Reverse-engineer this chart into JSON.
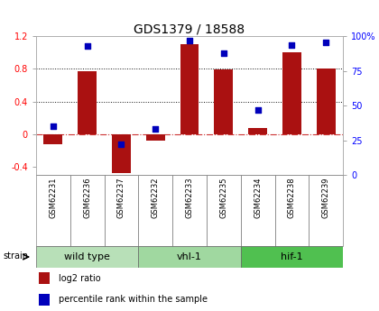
{
  "title": "GDS1379 / 18588",
  "samples": [
    "GSM62231",
    "GSM62236",
    "GSM62237",
    "GSM62232",
    "GSM62233",
    "GSM62235",
    "GSM62234",
    "GSM62238",
    "GSM62239"
  ],
  "log2_ratio": [
    -0.13,
    0.77,
    -0.48,
    -0.08,
    1.1,
    0.79,
    0.08,
    1.0,
    0.81
  ],
  "percentile": [
    35,
    93,
    22,
    33,
    97,
    88,
    47,
    94,
    96
  ],
  "groups": [
    {
      "label": "wild type",
      "start": 0,
      "end": 3,
      "color": "#b8e0b8"
    },
    {
      "label": "vhl-1",
      "start": 3,
      "end": 6,
      "color": "#a0d8a0"
    },
    {
      "label": "hif-1",
      "start": 6,
      "end": 9,
      "color": "#50c050"
    }
  ],
  "ylim_left": [
    -0.5,
    1.2
  ],
  "ylim_right": [
    0,
    100
  ],
  "bar_color": "#aa1111",
  "dot_color": "#0000bb",
  "zero_line_color": "#cc3333",
  "grid_color": "#111111",
  "bg_color": "#ffffff",
  "sample_bg": "#cccccc",
  "legend_red_label": "log2 ratio",
  "legend_blue_label": "percentile rank within the sample",
  "title_fontsize": 10,
  "tick_fontsize": 7,
  "sample_fontsize": 6,
  "group_fontsize": 8,
  "legend_fontsize": 7
}
